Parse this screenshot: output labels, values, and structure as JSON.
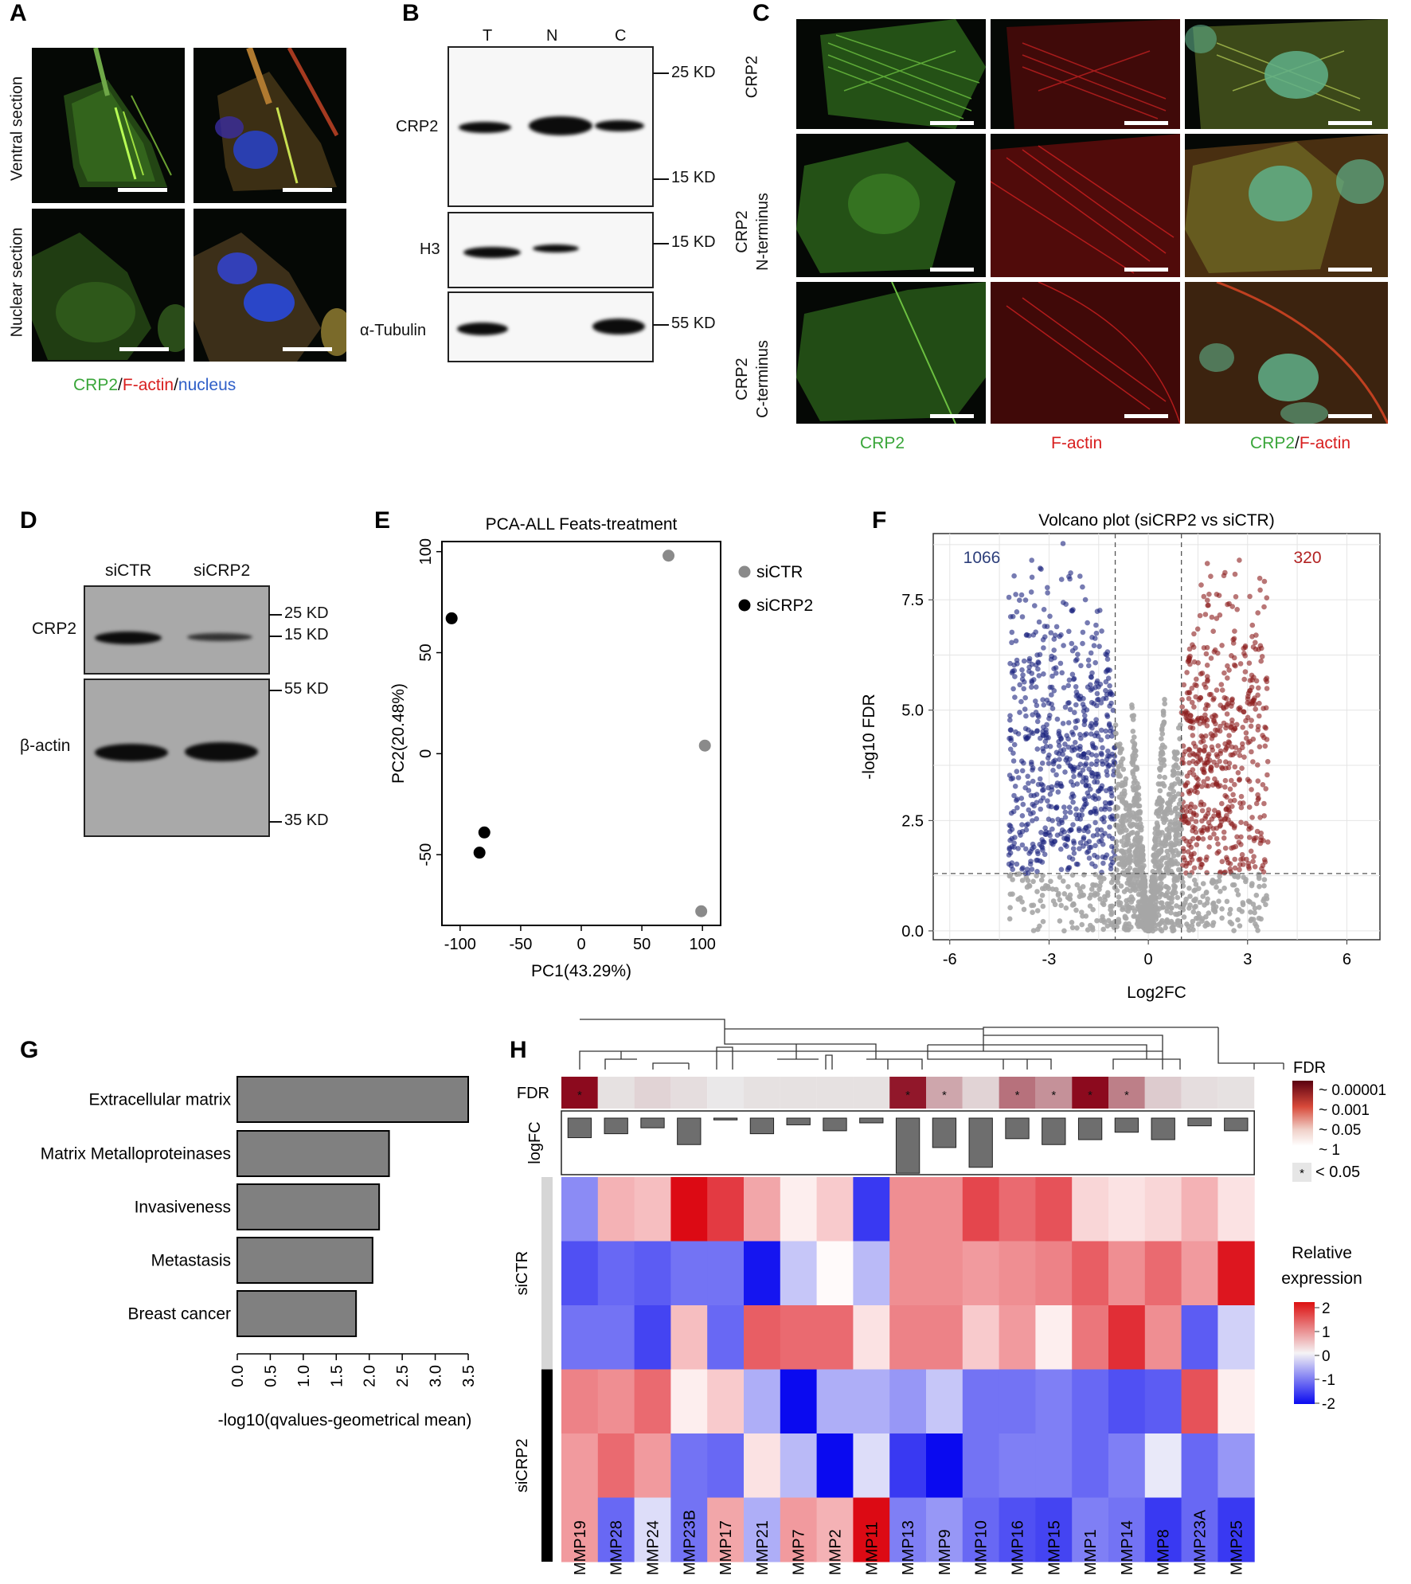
{
  "panels": {
    "A": "A",
    "B": "B",
    "C": "C",
    "D": "D",
    "E": "E",
    "F": "F",
    "G": "G",
    "H": "H"
  },
  "panel_a": {
    "row_labels": [
      "Ventral section",
      "Nuclear section"
    ],
    "legend": {
      "crp2": "CRP2",
      "sep1": "/",
      "factin": "F-actin",
      "sep2": "/",
      "nucleus": "nucleus"
    }
  },
  "panel_b": {
    "lanes": [
      "T",
      "N",
      "C"
    ],
    "proteins": [
      "CRP2",
      "H3",
      "α-Tubulin"
    ],
    "markers": [
      "25 KD",
      "15 KD",
      "15 KD",
      "55 KD"
    ]
  },
  "panel_c": {
    "row_labels": [
      [
        "CRP2"
      ],
      [
        "CRP2",
        "N-terminus"
      ],
      [
        "CRP2",
        "C-terminus"
      ]
    ],
    "col_labels": {
      "c1": "CRP2",
      "c2": "F-actin",
      "c3a": "CRP2",
      "c3sep": "/",
      "c3b": "F-actin"
    }
  },
  "panel_d": {
    "lanes": [
      "siCTR",
      "siCRP2"
    ],
    "proteins": [
      "CRP2",
      "β-actin"
    ],
    "markers": [
      "25 KD",
      "15 KD",
      "55 KD",
      "35 KD"
    ]
  },
  "chart_data": [
    {
      "type": "scatter",
      "title": "PCA-ALL Feats-treatment",
      "xlabel": "PC1(43.29%)",
      "ylabel": "PC2(20.48%)",
      "xlim": [
        -115,
        115
      ],
      "ylim": [
        -85,
        105
      ],
      "xticks": [
        "-100",
        "-50",
        "0",
        "50",
        "100"
      ],
      "yticks": [
        "100",
        "50",
        "0",
        "-50"
      ],
      "series": [
        {
          "name": "siCTR",
          "color": "#8a8a8a",
          "points": [
            [
              72,
              98
            ],
            [
              102,
              4
            ],
            [
              99,
              -78
            ]
          ]
        },
        {
          "name": "siCRP2",
          "color": "#000000",
          "points": [
            [
              -107,
              67
            ],
            [
              -80,
              -39
            ],
            [
              -84,
              -49
            ]
          ]
        }
      ]
    },
    {
      "type": "scatter",
      "title": "Volcano plot (siCRP2 vs siCTR)",
      "xlabel": "Log2FC",
      "ylabel": "-log10 FDR",
      "xlim": [
        -6.5,
        7.0
      ],
      "ylim": [
        -0.2,
        9.0
      ],
      "xticks": [
        "-6",
        "-3",
        "0",
        "3",
        "6"
      ],
      "yticks": [
        "0.0",
        "2.5",
        "5.0",
        "7.5"
      ],
      "thresholds": {
        "log2fc": [
          -1,
          1
        ],
        "neg_log10_fdr": 1.3
      },
      "annotations": {
        "down_count": "1066",
        "up_count": "320"
      },
      "colors": {
        "down": "#1a237e",
        "up": "#8b1a1a",
        "ns": "#a6a6a6"
      }
    },
    {
      "type": "bar",
      "orientation": "horizontal",
      "categories": [
        "Extracellular matrix",
        "Matrix Metalloproteinases",
        "Invasiveness",
        "Metastasis",
        "Breast cancer"
      ],
      "values": [
        3.5,
        2.3,
        2.15,
        2.05,
        1.8
      ],
      "xlabel": "-log10(qvalues-geometrical mean)",
      "xlim": [
        0,
        3.5
      ],
      "xticks": [
        "0.0",
        "0.5",
        "1.0",
        "1.5",
        "2.0",
        "2.5",
        "3.0",
        "3.5"
      ],
      "bar_color": "#808080"
    },
    {
      "type": "heatmap",
      "columns": [
        "MMP19",
        "MMP28",
        "MMP24",
        "MMP23B",
        "MMP17",
        "MMP21",
        "MMP7",
        "MMP2",
        "MMP11",
        "MMP13",
        "MMP9",
        "MMP10",
        "MMP16",
        "MMP15",
        "MMP1",
        "MMP14",
        "MMP8",
        "MMP23A",
        "MMP25"
      ],
      "row_groups": [
        "siCTR",
        "siCRP2"
      ],
      "values": [
        [
          -0.9,
          0.6,
          0.5,
          2.0,
          1.6,
          0.7,
          0.1,
          0.4,
          -1.6,
          0.9,
          0.9,
          1.5,
          1.2,
          1.4,
          0.3,
          0.2,
          0.3,
          0.6,
          0.2
        ],
        [
          -1.4,
          -1.2,
          -1.3,
          -1.1,
          -1.1,
          -1.9,
          -0.4,
          0.0,
          -0.5,
          0.9,
          0.9,
          0.8,
          0.9,
          1.0,
          1.3,
          0.9,
          1.2,
          0.8,
          1.9
        ],
        [
          -1.1,
          -1.1,
          -1.5,
          0.5,
          -1.2,
          1.3,
          1.2,
          1.2,
          0.2,
          1.0,
          1.0,
          0.4,
          0.8,
          0.1,
          1.1,
          1.7,
          0.9,
          -1.3,
          -0.3
        ],
        [
          1.0,
          0.9,
          1.2,
          0.1,
          0.4,
          -0.6,
          -2.0,
          -0.6,
          -0.6,
          -0.8,
          -0.4,
          -1.1,
          -1.1,
          -1.0,
          -1.2,
          -1.4,
          -1.3,
          1.4,
          0.1
        ],
        [
          0.8,
          1.2,
          0.8,
          -1.1,
          -1.2,
          0.2,
          -0.5,
          -2.0,
          -0.2,
          -1.6,
          -2.0,
          -1.1,
          -1.0,
          -1.0,
          -1.2,
          -1.0,
          -0.1,
          -1.2,
          -0.8
        ],
        [
          0.8,
          -1.2,
          -0.2,
          -1.1,
          0.7,
          -0.6,
          0.8,
          0.6,
          2.0,
          -1.0,
          -0.8,
          -1.2,
          -1.4,
          -1.5,
          -1.0,
          -1.1,
          -1.6,
          -1.2,
          -1.6
        ]
      ],
      "fdr": [
        1e-05,
        0.6,
        0.3,
        0.5,
        0.9,
        0.6,
        0.6,
        0.6,
        0.6,
        2e-05,
        0.03,
        0.3,
        0.002,
        0.01,
        5e-06,
        0.004,
        0.2,
        0.5,
        0.6
      ],
      "significant": [
        true,
        false,
        false,
        false,
        false,
        false,
        false,
        false,
        false,
        true,
        true,
        false,
        true,
        true,
        true,
        true,
        false,
        false,
        false
      ],
      "logfc": [
        0.38,
        0.3,
        0.18,
        -0.52,
        -0.02,
        -0.3,
        -0.12,
        -0.24,
        0.08,
        -1.1,
        -0.58,
        -0.98,
        -0.4,
        -0.52,
        -0.42,
        -0.27,
        -0.42,
        0.14,
        -0.24
      ],
      "legend": {
        "fdr_title": "FDR",
        "fdr_ticks": [
          "0.00001",
          "0.001",
          "0.05",
          "1"
        ],
        "sig_mark": "*",
        "sig_text": "< 0.05",
        "expr_title_1": "Relative",
        "expr_title_2": "expression",
        "expr_ticks": [
          "2",
          "1",
          "0",
          "-1",
          "-2"
        ]
      },
      "track_labels": {
        "fdr": "FDR",
        "logfc": "logFC"
      }
    }
  ]
}
